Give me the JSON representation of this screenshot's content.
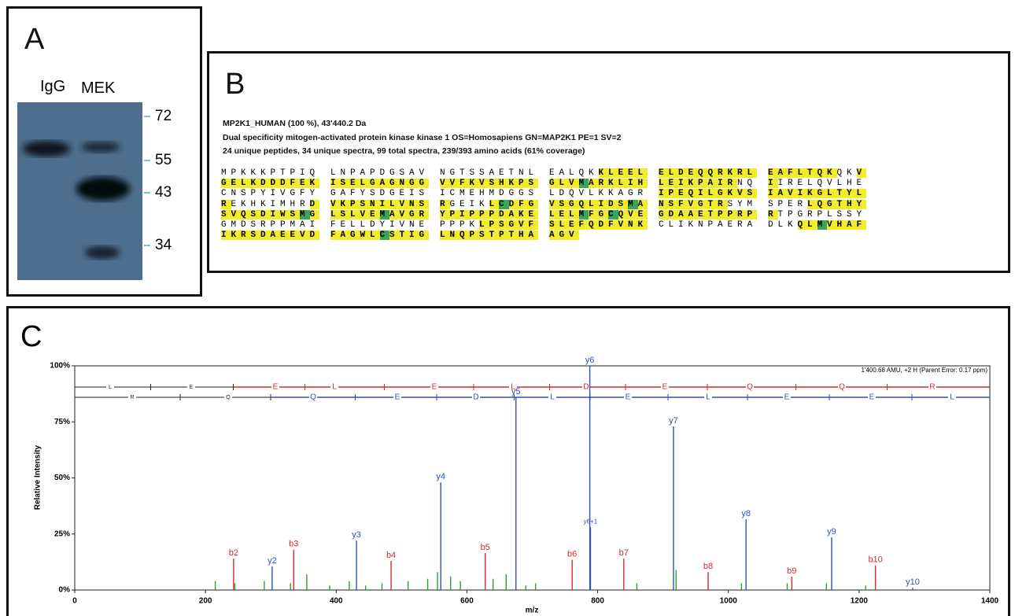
{
  "panel_a": {
    "label": "A",
    "lanes": [
      "IgG",
      "MEK"
    ],
    "markers": [
      72,
      55,
      43,
      34
    ]
  },
  "panel_b": {
    "label": "B",
    "header": [
      "MP2K1_HUMAN (100 %), 43'440.2 Da",
      "Dual specificity mitogen-activated protein kinase kinase 1 OS=Homosapiens GN=MAP2K1 PE=1 SV=2",
      "24 unique peptides, 34 unique spectra, 99 total spectra, 239/393 amino acids (61% coverage)"
    ],
    "sequence_rows": [
      [
        [
          {
            "text": "MPKKKPTPIQ"
          }
        ],
        [
          {
            "text": "LNPAPDGSAV"
          }
        ],
        [
          {
            "text": "NGTSSAETNL"
          }
        ],
        [
          {
            "text": "EALQK"
          },
          {
            "text": "KLEEL",
            "color": "#f3ec2b"
          }
        ],
        [
          {
            "text": "ELDEQQRKRL",
            "color": "#f3ec2b"
          }
        ],
        [
          {
            "text": "EAFLTQK",
            "color": "#f3ec2b"
          },
          {
            "text": "QK"
          },
          {
            "text": "V",
            "color": "#f3ec2b"
          }
        ]
      ],
      [
        [
          {
            "text": "GELKDDDFEK",
            "color": "#f3ec2b"
          }
        ],
        [
          {
            "text": "ISELGAGNGG",
            "color": "#f3ec2b"
          }
        ],
        [
          {
            "text": "VVFKVSHKPS",
            "color": "#f3ec2b"
          }
        ],
        [
          {
            "text": "GLV",
            "color": "#f3ec2b"
          },
          {
            "text": "M",
            "color": "#3aa55a"
          },
          {
            "text": "ARKLIH",
            "color": "#f3ec2b"
          }
        ],
        [
          {
            "text": "LEIKPAIR",
            "color": "#f3ec2b"
          },
          {
            "text": "NQ"
          }
        ],
        [
          {
            "text": "I",
            "color": "#f3ec2b"
          },
          {
            "text": "IRELQVLHE"
          }
        ]
      ],
      [
        [
          {
            "text": "CNSPYIVGFY"
          }
        ],
        [
          {
            "text": "GAFYSDGEIS"
          }
        ],
        [
          {
            "text": "ICMEHMDGGS"
          }
        ],
        [
          {
            "text": "LDQVLKKAGR"
          }
        ],
        [
          {
            "text": "IPEQILGKVS",
            "color": "#f3ec2b"
          }
        ],
        [
          {
            "text": "IAVIKGLTYL",
            "color": "#f3ec2b"
          }
        ]
      ],
      [
        [
          {
            "text": "R",
            "color": "#f3ec2b"
          },
          {
            "text": "EKHKIMHR"
          },
          {
            "text": "D",
            "color": "#f3ec2b"
          }
        ],
        [
          {
            "text": "VKPSNILVNS",
            "color": "#f3ec2b"
          }
        ],
        [
          {
            "text": "R",
            "color": "#f3ec2b"
          },
          {
            "text": "GEIK"
          },
          {
            "text": "L",
            "color": "#f3ec2b"
          },
          {
            "text": "C",
            "color": "#3aa55a"
          },
          {
            "text": "DFG",
            "color": "#f3ec2b"
          }
        ],
        [
          {
            "text": "VSGQLIDS",
            "color": "#f3ec2b"
          },
          {
            "text": "M",
            "color": "#3aa55a"
          },
          {
            "text": "A",
            "color": "#f3ec2b"
          }
        ],
        [
          {
            "text": "NSFVGTR",
            "color": "#f3ec2b"
          },
          {
            "text": "SYM"
          }
        ],
        [
          {
            "text": "SPER"
          },
          {
            "text": "LQGTHY",
            "color": "#f3ec2b"
          }
        ]
      ],
      [
        [
          {
            "text": "SVQSDIWS",
            "color": "#f3ec2b"
          },
          {
            "text": "M",
            "color": "#3aa55a"
          },
          {
            "text": "G",
            "color": "#f3ec2b"
          }
        ],
        [
          {
            "text": "LSLVE",
            "color": "#f3ec2b"
          },
          {
            "text": "M",
            "color": "#3aa55a"
          },
          {
            "text": "AVGR",
            "color": "#f3ec2b"
          }
        ],
        [
          {
            "text": "YPIPPPDAKE",
            "color": "#f3ec2b"
          }
        ],
        [
          {
            "text": "LEL",
            "color": "#f3ec2b"
          },
          {
            "text": "M",
            "color": "#3aa55a"
          },
          {
            "text": "FG",
            "color": "#f3ec2b"
          },
          {
            "text": "C",
            "color": "#3aa55a"
          },
          {
            "text": "QVE",
            "color": "#f3ec2b"
          }
        ],
        [
          {
            "text": "GDAAETPPRP",
            "color": "#f3ec2b"
          }
        ],
        [
          {
            "text": "R",
            "color": "#f3ec2b"
          },
          {
            "text": "TPGRPLSSY"
          }
        ]
      ],
      [
        [
          {
            "text": "GMDSRPPMAI"
          }
        ],
        [
          {
            "text": "FELLDYIVNE"
          }
        ],
        [
          {
            "text": "PPPK"
          },
          {
            "text": "LPSGVF",
            "color": "#f3ec2b"
          }
        ],
        [
          {
            "text": "SLEFQDFVNK",
            "color": "#f3ec2b"
          }
        ],
        [
          {
            "text": "CLIKNPAERA"
          }
        ],
        [
          {
            "text": "DLK"
          },
          {
            "text": "QL",
            "color": "#f3ec2b"
          },
          {
            "text": "M",
            "color": "#3aa55a"
          },
          {
            "text": "VHAF",
            "color": "#f3ec2b"
          }
        ]
      ],
      [
        [
          {
            "text": "IKRSDAEEVD",
            "color": "#f3ec2b"
          }
        ],
        [
          {
            "text": "FAGWL",
            "color": "#f3ec2b"
          },
          {
            "text": "C",
            "color": "#3aa55a"
          },
          {
            "text": "STIG",
            "color": "#f3ec2b"
          }
        ],
        [
          {
            "text": "LNQPSTPTHA",
            "color": "#f3ec2b"
          }
        ],
        [
          {
            "text": "AGV",
            "color": "#f3ec2b"
          }
        ]
      ]
    ]
  },
  "panel_c": {
    "label": "C"
  },
  "chart_data": {
    "type": "spectrum",
    "xlabel": "m/z",
    "ylabel": "Relative Intensity",
    "annotation": "1'400.68 AMU, +2 H (Parent Error: 0.17 ppm)",
    "xlim": [
      0,
      1400
    ],
    "ylim": [
      0,
      100
    ],
    "xticks": [
      0,
      200,
      400,
      600,
      800,
      1000,
      1200,
      1400
    ],
    "yticks": [
      {
        "value": 0,
        "label": "0%"
      },
      {
        "value": 25,
        "label": "25%"
      },
      {
        "value": 50,
        "label": "50%"
      },
      {
        "value": 75,
        "label": "75%"
      },
      {
        "value": 100,
        "label": "100%"
      }
    ],
    "ladders": [
      {
        "color": "#d42a2a",
        "prefix": [
          "L",
          "E"
        ],
        "letters": [
          "E",
          "L",
          "E",
          "L",
          "D",
          "E",
          "Q",
          "Q",
          "R"
        ]
      },
      {
        "color": "#3050b8",
        "prefix": [
          "R",
          "Q"
        ],
        "letters": [
          "Q",
          "E",
          "D",
          "L",
          "E",
          "L",
          "E",
          "E",
          "L"
        ]
      }
    ],
    "series": [
      {
        "color": "#2ca02c",
        "x": [
          215,
          245,
          290,
          330,
          355,
          390,
          420,
          445,
          470,
          510,
          540,
          555,
          575,
          590,
          640,
          660,
          690,
          705,
          860,
          920,
          1020,
          1090,
          1150,
          1210
        ],
        "values": [
          4,
          3,
          4,
          3,
          7,
          2,
          4,
          2,
          3,
          4,
          5,
          8,
          6,
          4,
          5,
          7,
          2,
          3,
          3,
          9,
          3,
          3,
          3,
          2
        ]
      },
      {
        "color": "#d42a2a",
        "x": [
          243,
          335,
          484,
          628,
          761,
          840,
          969,
          1097,
          1225
        ],
        "values": [
          14,
          18,
          13,
          16.5,
          13.5,
          14,
          8,
          6,
          11
        ],
        "labels": [
          "b2",
          "b3",
          "b4",
          "b5",
          "b6",
          "b7",
          "b8",
          "b9",
          "b10"
        ]
      },
      {
        "color": "#3050b8",
        "x": [
          302,
          431,
          560,
          675,
          788,
          789,
          916,
          1027,
          1158,
          1282
        ],
        "values": [
          10.5,
          22,
          48,
          86,
          100,
          28,
          73,
          31.5,
          23.5,
          1
        ],
        "labels": [
          "y2",
          "y3",
          "y4",
          "y5",
          "y6",
          "y6+1",
          "y7",
          "y8",
          "y9",
          "y10"
        ]
      }
    ]
  }
}
